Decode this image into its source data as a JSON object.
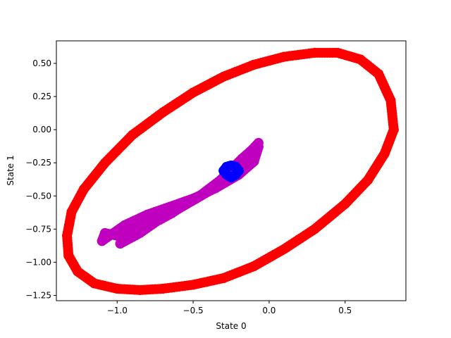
{
  "chart_data": {
    "type": "scatter",
    "title": "",
    "xlabel": "State 0",
    "ylabel": "State 1",
    "xlim": [
      -1.4,
      0.9
    ],
    "ylim": [
      -1.29,
      0.67
    ],
    "grid": false,
    "xticks": [
      -1.0,
      -0.5,
      0.0,
      0.5
    ],
    "xtick_labels": [
      "−1.0",
      "−0.5",
      "0.0",
      "0.5"
    ],
    "yticks": [
      0.5,
      0.25,
      0.0,
      -0.25,
      -0.5,
      -0.75,
      -1.0,
      -1.25
    ],
    "ytick_labels": [
      "0.50",
      "0.25",
      "0.00",
      "−0.25",
      "−0.50",
      "−0.75",
      "−1.00",
      "−1.25"
    ],
    "series": [
      {
        "color": "#ff0000",
        "x": [
          0.82,
          0.8,
          0.72,
          0.6,
          0.45,
          0.3,
          0.1,
          -0.1,
          -0.3,
          -0.5,
          -0.7,
          -0.9,
          -1.08,
          -1.22,
          -1.3,
          -1.33,
          -1.32,
          -1.26,
          -1.15,
          -1.0,
          -0.85,
          -0.7,
          -0.5,
          -0.3,
          -0.1,
          0.1,
          0.3,
          0.5,
          0.65,
          0.76,
          0.82
        ],
        "y": [
          0.0,
          0.22,
          0.42,
          0.53,
          0.58,
          0.58,
          0.55,
          0.49,
          0.4,
          0.28,
          0.13,
          -0.04,
          -0.25,
          -0.45,
          -0.62,
          -0.8,
          -0.95,
          -1.07,
          -1.16,
          -1.2,
          -1.21,
          -1.2,
          -1.17,
          -1.12,
          -1.03,
          -0.9,
          -0.75,
          -0.56,
          -0.38,
          -0.18,
          0.0
        ]
      },
      {
        "color": "#bf00bf",
        "x": [
          -0.07,
          -0.12,
          -0.18,
          -0.25,
          -0.32,
          -0.4,
          -0.48,
          -0.56,
          -0.64,
          -0.72,
          -0.8,
          -0.9,
          -1.0,
          -1.08,
          -1.1,
          -0.95,
          -0.8,
          -0.65,
          -0.5,
          -0.35,
          -0.2,
          -0.1,
          -0.07,
          -0.15,
          -0.3,
          -0.45,
          -0.6,
          -0.75,
          -0.88,
          -0.98,
          -0.85,
          -0.7,
          -0.55,
          -0.4,
          -0.25,
          -0.12
        ],
        "y": [
          -0.1,
          -0.16,
          -0.22,
          -0.3,
          -0.38,
          -0.45,
          -0.52,
          -0.57,
          -0.63,
          -0.68,
          -0.72,
          -0.76,
          -0.8,
          -0.78,
          -0.84,
          -0.72,
          -0.64,
          -0.58,
          -0.52,
          -0.44,
          -0.34,
          -0.24,
          -0.13,
          -0.26,
          -0.4,
          -0.5,
          -0.6,
          -0.66,
          -0.72,
          -0.86,
          -0.78,
          -0.66,
          -0.56,
          -0.46,
          -0.34,
          -0.2
        ]
      },
      {
        "color": "#0000ff",
        "x": [
          -0.2,
          -0.22,
          -0.25,
          -0.28,
          -0.3,
          -0.28,
          -0.25,
          -0.22,
          -0.2
        ],
        "y": [
          -0.31,
          -0.28,
          -0.27,
          -0.28,
          -0.31,
          -0.34,
          -0.36,
          -0.34,
          -0.31
        ]
      }
    ]
  }
}
